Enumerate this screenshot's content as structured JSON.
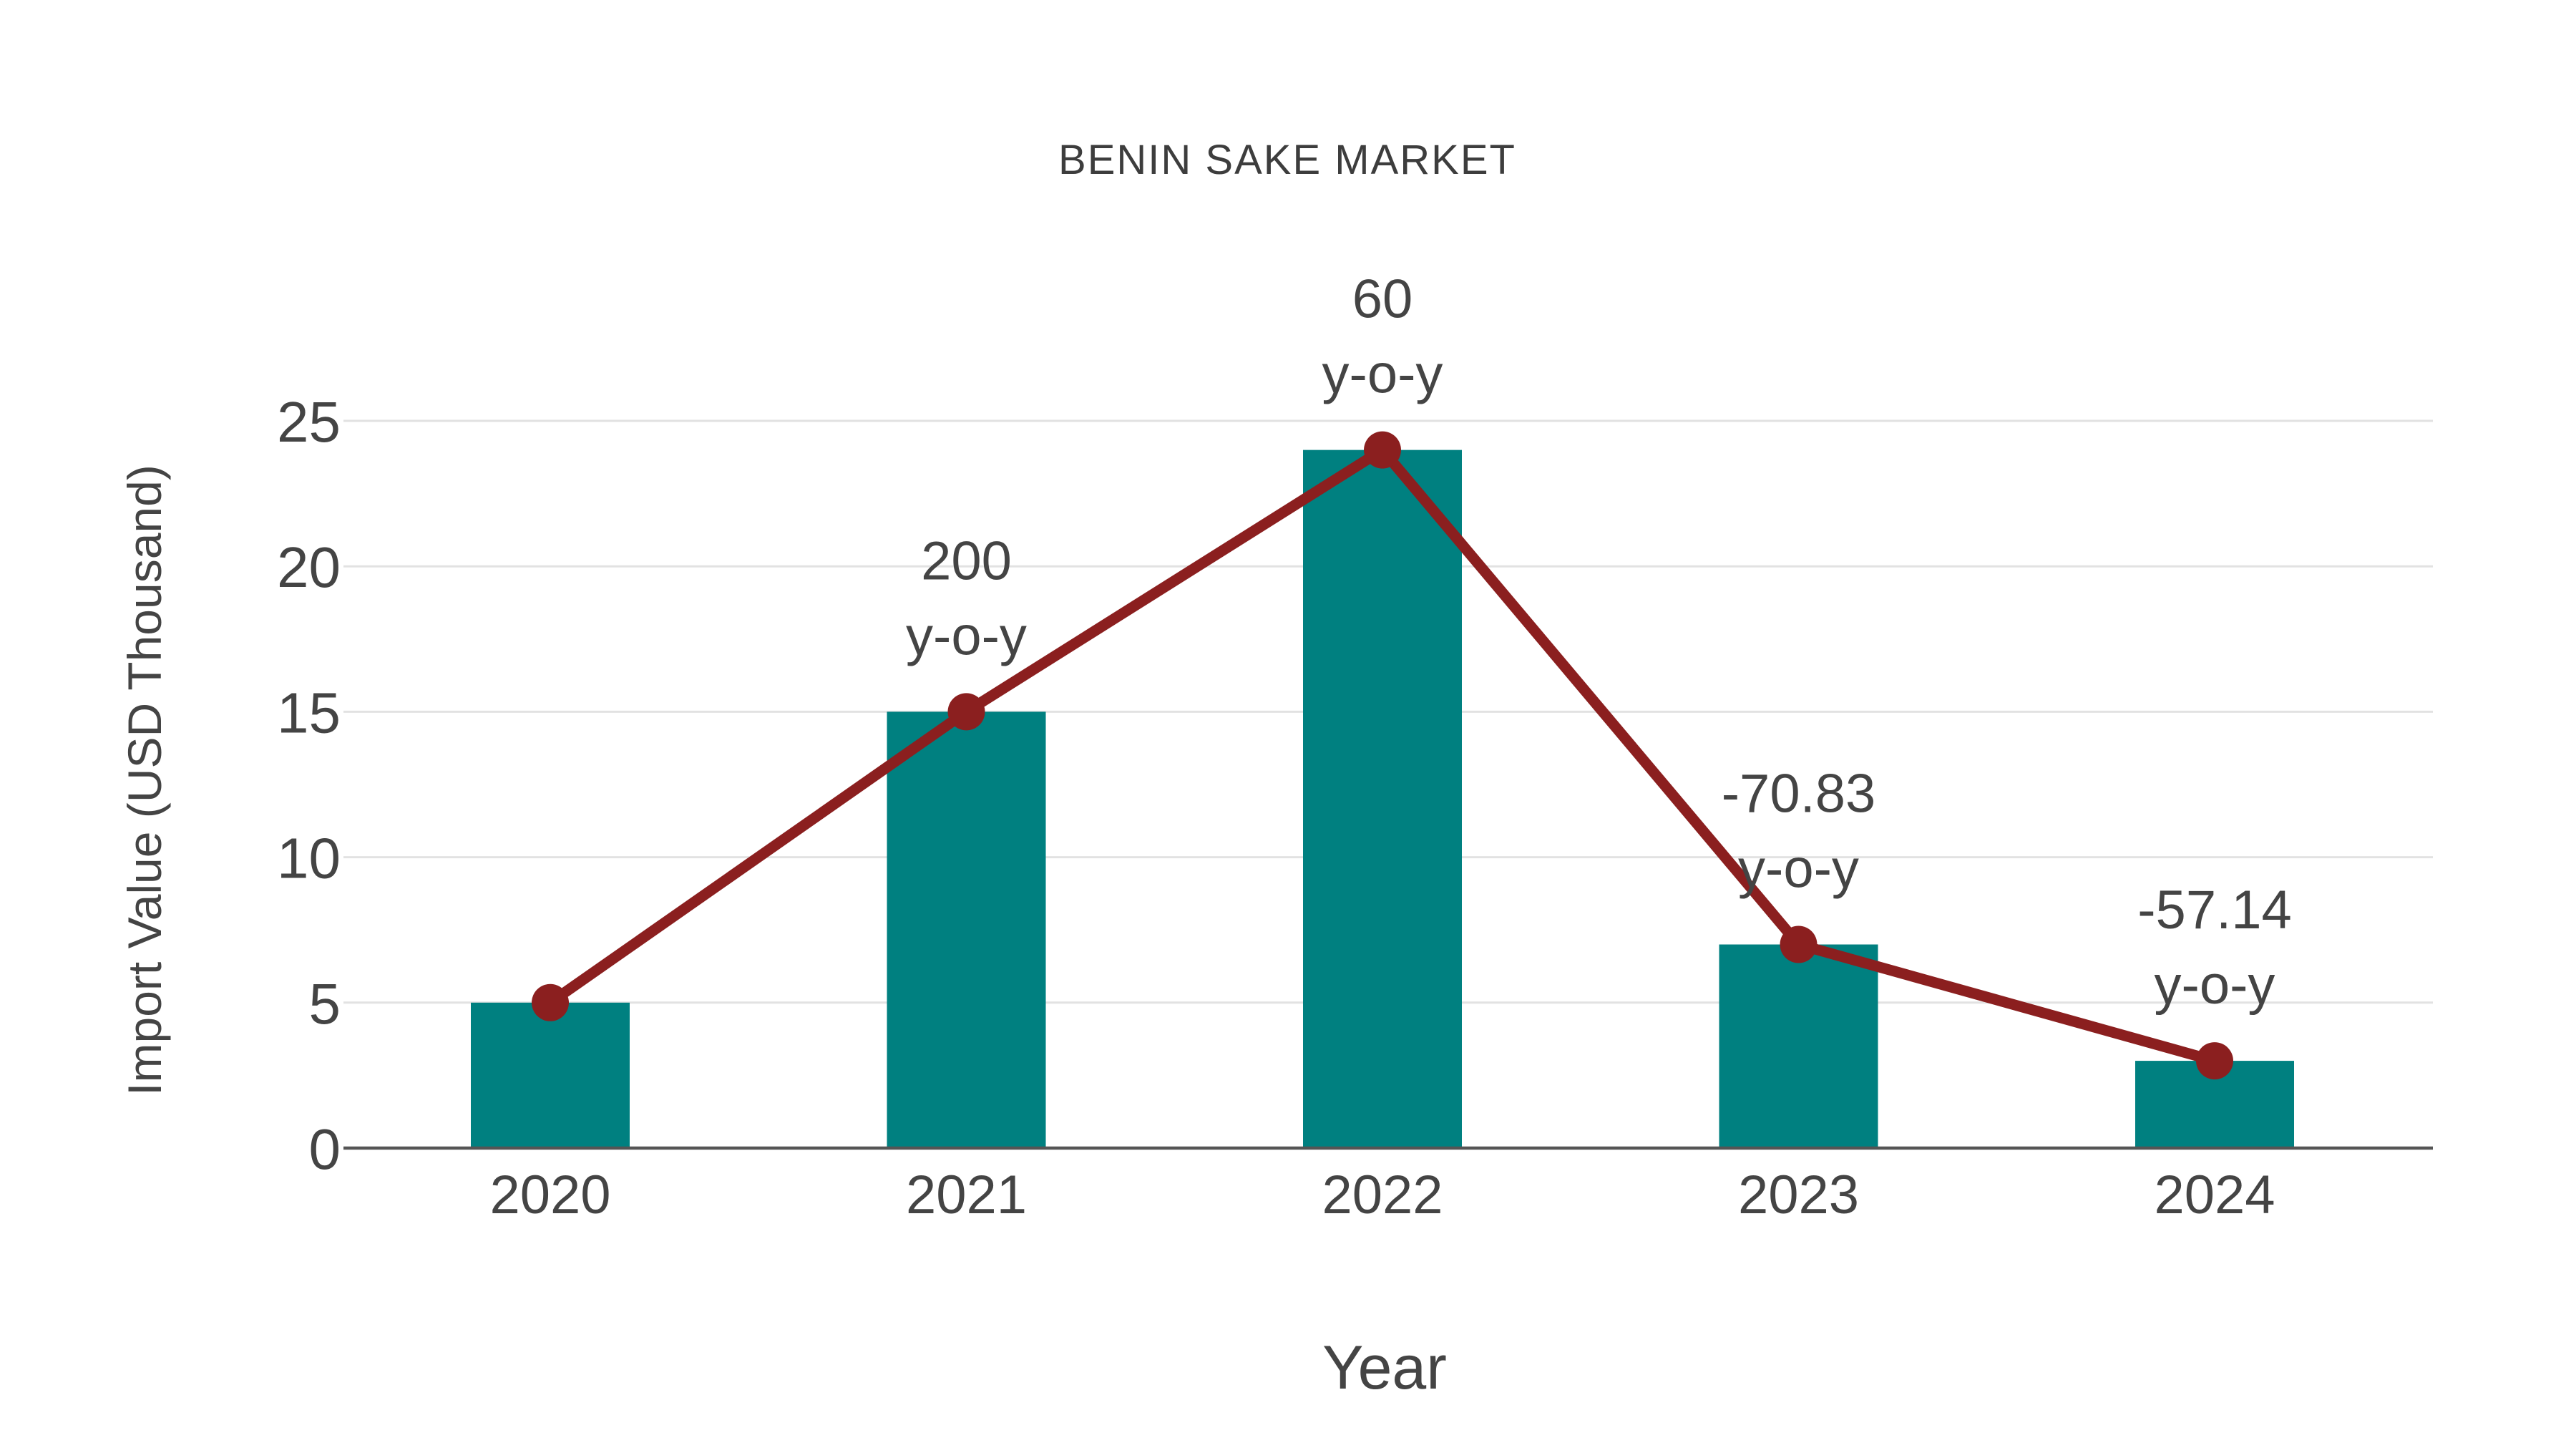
{
  "chart_data": {
    "type": "bar",
    "title": "BENIN SAKE MARKET",
    "xlabel": "Year",
    "ylabel": "Import Value (USD Thousand)",
    "categories": [
      "2020",
      "2021",
      "2022",
      "2023",
      "2024"
    ],
    "series": [
      {
        "name": "import-value-bars",
        "type": "bar",
        "values": [
          5,
          15,
          24,
          7,
          3
        ],
        "color": "#008080"
      },
      {
        "name": "trend-line",
        "type": "line",
        "values": [
          5,
          15,
          24,
          7,
          3
        ],
        "color": "#8B1F1F"
      }
    ],
    "annotations": [
      {
        "category": "2021",
        "line1": "200",
        "line2": "y-o-y"
      },
      {
        "category": "2022",
        "line1": "60",
        "line2": "y-o-y"
      },
      {
        "category": "2023",
        "line1": "-70.83",
        "line2": "y-o-y"
      },
      {
        "category": "2024",
        "line1": "-57.14",
        "line2": "y-o-y"
      }
    ],
    "yticks": [
      0,
      5,
      10,
      15,
      20,
      25
    ],
    "ylim": [
      0,
      25
    ],
    "grid": true,
    "legend_position": "none",
    "colors": {
      "bar": "#008080",
      "line": "#8B1F1F",
      "marker": "#8B1F1F",
      "gridline": "#e2e2e2",
      "axis_line": "#555555",
      "text": "#444444",
      "title_text": "#3d3d3d",
      "background": "#ffffff"
    }
  }
}
